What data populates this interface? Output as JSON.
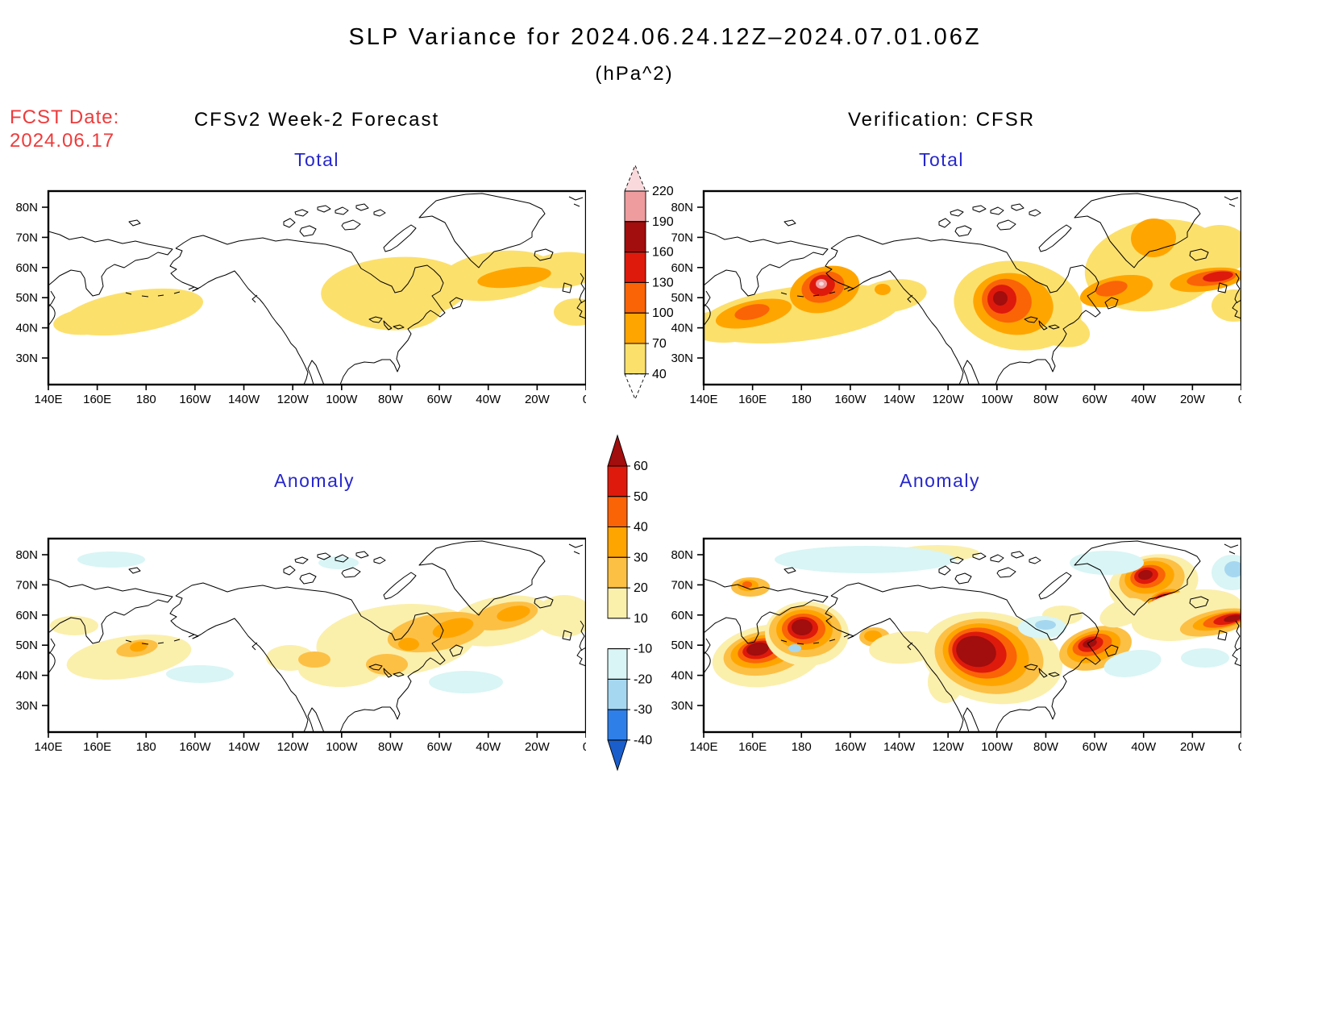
{
  "title": {
    "line1": "SLP Variance for 2024.06.24.12Z–2024.07.01.06Z",
    "line2": "(hPa^2)"
  },
  "forecast_info": {
    "label": "FCST Date:",
    "date": "2024.06.17",
    "color": "#EE3B3B"
  },
  "columns": {
    "left_header": "CFSv2 Week-2 Forecast",
    "right_header": "Verification: CFSR"
  },
  "panels": {
    "fcst_total": {
      "label": "Total"
    },
    "verif_total": {
      "label": "Total"
    },
    "fcst_anom": {
      "label": "Anomaly"
    },
    "verif_anom": {
      "label": "Anomaly"
    }
  },
  "panel_label_color": "#2626CC",
  "axes": {
    "lat_labels": [
      "80N",
      "70N",
      "60N",
      "50N",
      "40N",
      "30N"
    ],
    "lon_labels": [
      "140E",
      "160E",
      "180",
      "160W",
      "140W",
      "120W",
      "100W",
      "80W",
      "60W",
      "40W",
      "20W",
      "0"
    ]
  },
  "colorbars": {
    "total": {
      "tick_labels": [
        "220",
        "190",
        "160",
        "130",
        "100",
        "70",
        "40"
      ],
      "levels": [
        40,
        70,
        100,
        130,
        160,
        190,
        220
      ],
      "colors_low_to_high": [
        "#FCE06C",
        "#FFA500",
        "#FB6307",
        "#DE1A0C",
        "#A20D0D",
        "#EE9C9E"
      ],
      "above_max_color": "#F9D9DC",
      "below_min_color": "#FFFFFF"
    },
    "anomaly": {
      "tick_labels": [
        "60",
        "50",
        "40",
        "30",
        "20",
        "10",
        "-10",
        "-20",
        "-30",
        "-40"
      ],
      "levels": [
        -40,
        -30,
        -20,
        -10,
        10,
        20,
        30,
        40,
        50,
        60
      ],
      "colors_low_to_high": [
        "#2F7FE8",
        "#A6D7F0",
        "#D9F5F5",
        "#FFFFFF",
        "#FBEFAC",
        "#FCC045",
        "#FFA500",
        "#FB6307",
        "#DE1A0C"
      ],
      "above_max_color": "#A20D0D",
      "below_min_color": "#1A5ECC"
    }
  },
  "chart_data": {
    "type": "heatmap",
    "subtype": "filled_contour_map_grid",
    "title": "SLP Variance for 2024.06.24.12Z-2024.07.01.06Z",
    "units": "hPa^2",
    "forecast_date": "2024.06.17",
    "grid": {
      "rows": 2,
      "cols": 2,
      "row_labels": [
        "Total",
        "Anomaly"
      ],
      "col_labels": [
        "CFSv2 Week-2 Forecast",
        "Verification: CFSR"
      ]
    },
    "map_extent": {
      "lon_min": "140E",
      "lon_max": "0",
      "lat_min": "~25N",
      "lat_max": "~85N"
    },
    "scales": {
      "total": {
        "levels": [
          40,
          70,
          100,
          130,
          160,
          190,
          220
        ],
        "colors": [
          "#FCE06C",
          "#FFA500",
          "#FB6307",
          "#DE1A0C",
          "#A20D0D",
          "#EE9C9E"
        ],
        "above_max": "#F9D9DC"
      },
      "anomaly": {
        "levels": [
          -40,
          -30,
          -20,
          -10,
          10,
          20,
          30,
          40,
          50,
          60
        ],
        "colors": [
          "#2F7FE8",
          "#A6D7F0",
          "#D9F5F5",
          "#FFFFFF",
          "#FBEFAC",
          "#FCC045",
          "#FFA500",
          "#FB6307",
          "#DE1A0C"
        ],
        "above_max": "#A20D0D",
        "below_min": "#1A5ECC"
      }
    },
    "panels": [
      {
        "panel": "forecast_total",
        "label": "Total",
        "peak_value_range": "70-100",
        "max_regions": [
          "North Atlantic ~50W-25W, 52-58N reaches 70-100",
          "broad 40-70 band over NE Canada / North Atlantic 100W-0, 45-65N",
          "40-70 patch NW Pacific 150E-170W, 38-55N"
        ]
      },
      {
        "panel": "verification_total",
        "label": "Total",
        "peak_value_range": ">220",
        "max_regions": [
          "North Pacific ~175W 55N core >190 with small >220 spot",
          "west Pacific ~160E 48N core 100-130",
          "central North America ~100W 48N core 130-160",
          "NW Atlantic ~62W 47N 100-130",
          "NE Atlantic ~15W 55N 130-160",
          "Greenland 40W-25W 65-80N 70-100"
        ]
      },
      {
        "panel": "forecast_anomaly",
        "label": "Anomaly",
        "peak_value_range": "30-40",
        "max_regions": [
          "E Canada to NW Atlantic 100W-30W 45-62N, cores 30-40",
          "NW Pacific ~175E 53N 20-30"
        ],
        "negative_regions": [
          "weak -10 to -20 patches N Pacific, Arctic and mid-Atlantic"
        ]
      },
      {
        "panel": "verification_anomaly",
        "label": "Anomaly",
        "peak_value_range": ">60",
        "max_regions": [
          "central North America ~100W 45N >60",
          "N Pacific ~178E 55N >60",
          "W Pacific ~160E 48N >60",
          "Greenland ~40W 73N >60",
          "NW Atlantic ~60W 48N 50-60",
          "NE Atlantic near 5W 56N >60"
        ],
        "negative_regions": [
          "-10 to -20 Arctic band 170E-120W ~80N",
          "-10 to -20 Hudson Bay area",
          "-10 mid-Atlantic ~35W 45N"
        ]
      }
    ]
  }
}
